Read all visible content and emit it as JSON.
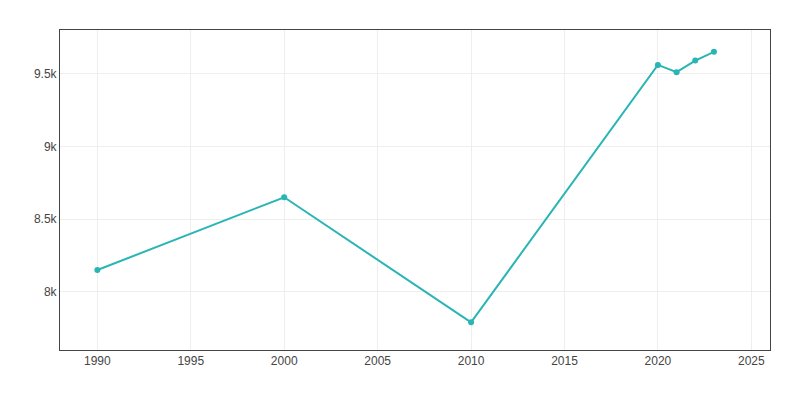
{
  "chart_data": {
    "type": "line",
    "x": [
      1990,
      2000,
      2010,
      2020,
      2021,
      2022,
      2023
    ],
    "values": [
      8150,
      8650,
      7790,
      9560,
      9510,
      9590,
      9650
    ],
    "color": "#2ab5b5",
    "marker": "circle",
    "line_style": "solid",
    "xlim": [
      1988,
      2026
    ],
    "xticks": [
      1990,
      1995,
      2000,
      2005,
      2010,
      2015,
      2020,
      2025
    ],
    "ylim": [
      7600,
      9800
    ],
    "yticks": [
      {
        "value": 8000,
        "label": "8k"
      },
      {
        "value": 8500,
        "label": "8.5k"
      },
      {
        "value": 9000,
        "label": "9k"
      },
      {
        "value": 9500,
        "label": "9.5k"
      }
    ],
    "grid": true
  }
}
